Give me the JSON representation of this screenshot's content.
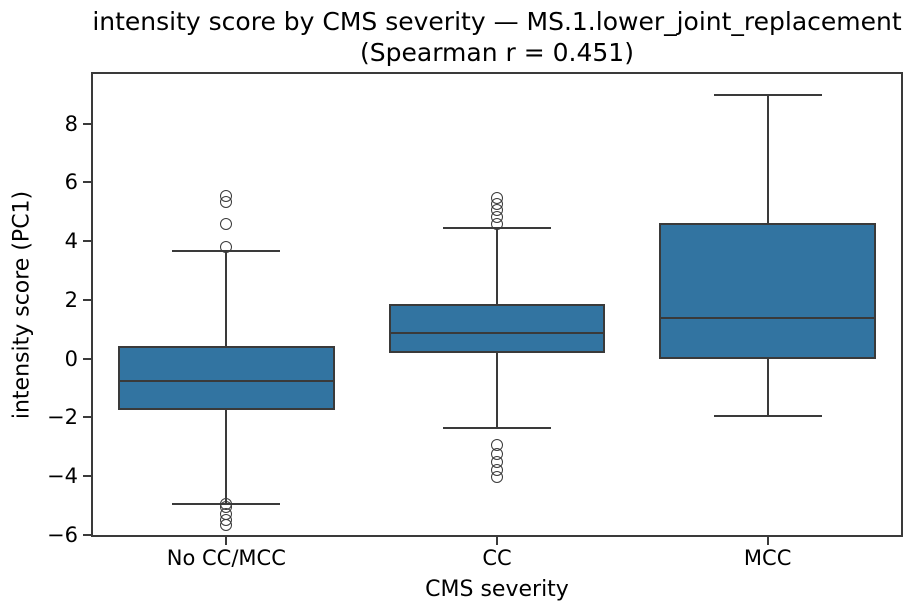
{
  "chart_data": {
    "type": "box",
    "title": "intensity score by CMS severity — MS.1.lower_joint_replacement",
    "subtitle": "(Spearman r = 0.451)",
    "spearman_r": 0.451,
    "xlabel": "CMS severity",
    "ylabel": "intensity score (PC1)",
    "categories": [
      "No CC/MCC",
      "CC",
      "MCC"
    ],
    "ylim": [
      -6.07,
      9.76
    ],
    "yticks": [
      8,
      6,
      4,
      2,
      0,
      -2,
      -4,
      -6
    ],
    "ytick_labels": [
      "8",
      "6",
      "4",
      "2",
      "0",
      "−2",
      "−4",
      "−6"
    ],
    "grid": false,
    "legend": "none",
    "box_width": 0.8,
    "cap_width": 0.4,
    "groups": [
      {
        "label": "No CC/MCC",
        "whisker_low": -4.95,
        "q1": -1.76,
        "median": -0.75,
        "q3": 0.43,
        "whisker_high": 3.67,
        "outliers": [
          5.55,
          5.32,
          4.57,
          3.81,
          -4.95,
          -5.05,
          -5.28,
          -5.48,
          -5.65
        ]
      },
      {
        "label": "CC",
        "whisker_low": -2.37,
        "q1": 0.18,
        "median": 0.88,
        "q3": 1.86,
        "whisker_high": 4.44,
        "outliers": [
          5.48,
          5.25,
          5.05,
          4.83,
          4.57,
          -2.94,
          -3.25,
          -3.51,
          -3.79,
          -4.02
        ]
      },
      {
        "label": "MCC",
        "whisker_low": -1.96,
        "q1": -0.02,
        "median": 1.37,
        "q3": 4.61,
        "whisker_high": 8.98,
        "outliers": []
      }
    ],
    "style": {
      "box_fill": "#3274A1",
      "line_color": "#3A3A3A",
      "text_color": "#000000",
      "background": "#FFFFFF"
    }
  }
}
